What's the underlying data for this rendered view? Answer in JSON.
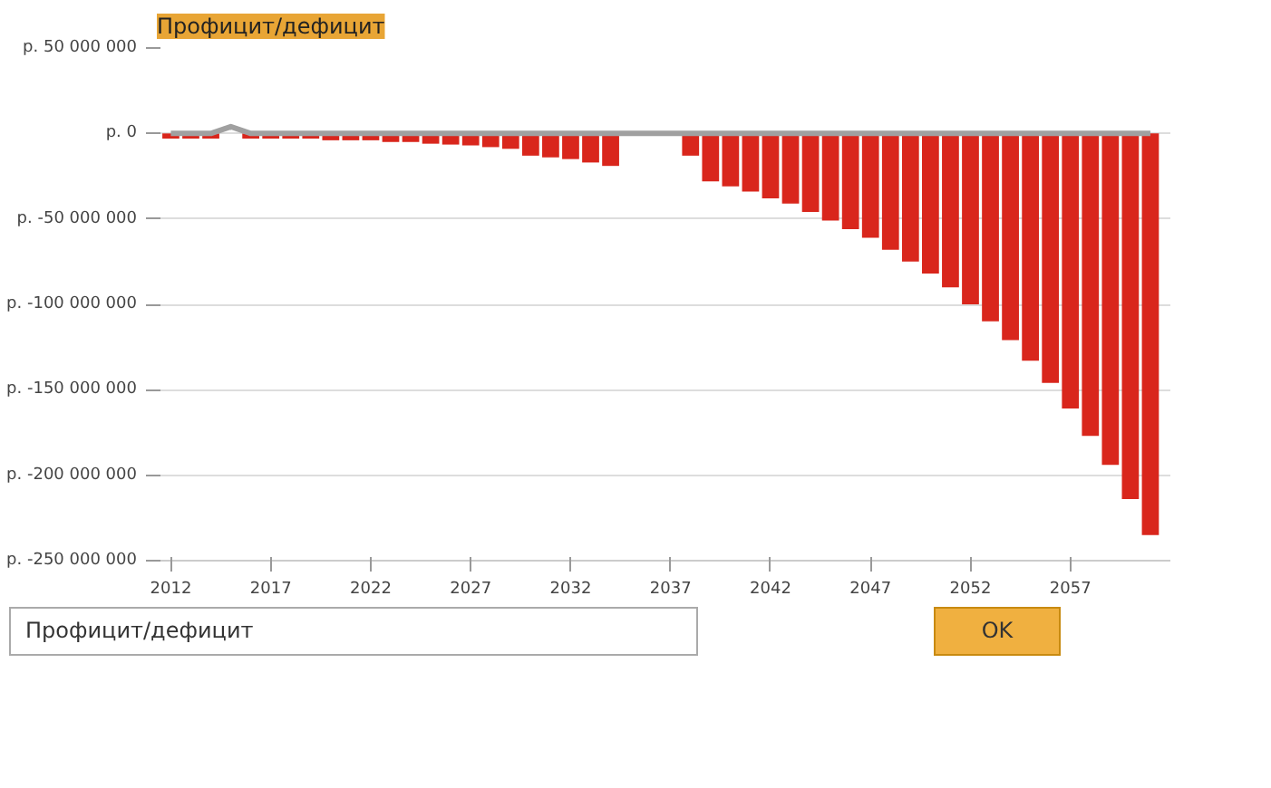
{
  "chart_data": {
    "type": "bar",
    "title": "Профицит/дефицит",
    "x": [
      2012,
      2013,
      2014,
      2015,
      2016,
      2017,
      2018,
      2019,
      2020,
      2021,
      2022,
      2023,
      2024,
      2025,
      2026,
      2027,
      2028,
      2029,
      2030,
      2031,
      2032,
      2033,
      2034,
      2035,
      2036,
      2037,
      2038,
      2039,
      2040,
      2041,
      2042,
      2043,
      2044,
      2045,
      2046,
      2047,
      2048,
      2049,
      2050,
      2051,
      2052,
      2053,
      2054,
      2055,
      2056,
      2057,
      2058,
      2059,
      2060,
      2061
    ],
    "series": [
      {
        "color": "#d9261c",
        "values": [
          -3000000,
          -3000000,
          -3000000,
          null,
          -3000000,
          -3000000,
          -3000000,
          -3000000,
          -4000000,
          -4000000,
          -4000000,
          -5000000,
          -5000000,
          -6000000,
          -6500000,
          -7000000,
          -8000000,
          -9000000,
          -13000000,
          -14000000,
          -15000000,
          -17000000,
          -19000000,
          null,
          null,
          null,
          -13000000,
          -28000000,
          -31000000,
          -34000000,
          -38000000,
          -41000000,
          -46000000,
          -51000000,
          -56000000,
          -61000000,
          -68000000,
          -75000000,
          -82000000,
          -90000000,
          -100000000,
          -110000000,
          -121000000,
          -133000000,
          -146000000,
          -161000000,
          -177000000,
          -194000000,
          -214000000,
          -235000000
        ]
      },
      {
        "type": "line",
        "color": "#a0a0a0",
        "values": [
          0,
          0,
          0,
          4000000,
          0,
          0,
          0,
          0,
          0,
          0,
          0,
          0,
          0,
          0,
          0,
          0,
          0,
          0,
          0,
          0,
          0,
          0,
          0,
          0,
          0,
          0,
          0,
          0,
          0,
          0,
          0,
          0,
          0,
          0,
          0,
          0,
          0,
          0,
          0,
          0,
          0,
          0,
          0,
          0,
          0,
          0,
          0,
          0,
          0,
          0
        ]
      }
    ],
    "xlim": [
      2011.3,
      2062
    ],
    "xticks": [
      2012,
      2017,
      2022,
      2027,
      2032,
      2037,
      2042,
      2047,
      2052,
      2057
    ],
    "ylim": [
      -250000000,
      50000000
    ],
    "yticks": [
      {
        "value": 50000000,
        "label": "р. 50 000 000"
      },
      {
        "value": 0,
        "label": "р. 0"
      },
      {
        "value": -50000000,
        "label": "р. -50 000 000"
      },
      {
        "value": -100000000,
        "label": "р. -100 000 000"
      },
      {
        "value": -150000000,
        "label": "р. -150 000 000"
      },
      {
        "value": -200000000,
        "label": "р. -200 000 000"
      },
      {
        "value": -250000000,
        "label": "р. -250 000 000"
      }
    ],
    "grid": "y",
    "annotations": [
      "Профицит/дефицит",
      "OK"
    ]
  }
}
